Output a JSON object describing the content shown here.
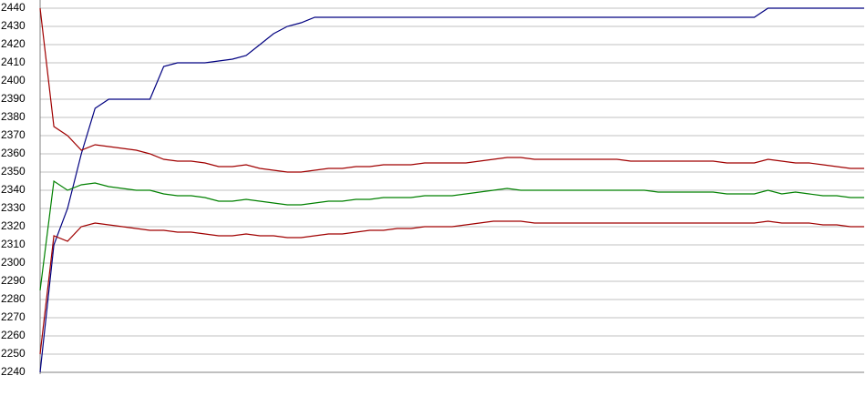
{
  "chart_data": {
    "type": "line",
    "categories": [
      null,
      null,
      null,
      null,
      null,
      null,
      null,
      null,
      null,
      null,
      null,
      null,
      null,
      null,
      null,
      null,
      null,
      null,
      null,
      null,
      null,
      null,
      null,
      null,
      null,
      null,
      null,
      null,
      null,
      null,
      null,
      null,
      null,
      null,
      null,
      null,
      null,
      null,
      null,
      null,
      null,
      null,
      null,
      null,
      null,
      null,
      null,
      null,
      null,
      null,
      null,
      null,
      null,
      null,
      null,
      null,
      null,
      null,
      null,
      null,
      null
    ],
    "series": [
      {
        "color": "#000080",
        "values": [
          2240,
          2310,
          2330,
          2360,
          2385,
          2390,
          2390,
          2390,
          2390,
          2408,
          2410,
          2410,
          2410,
          2411,
          2412,
          2414,
          2420,
          2426,
          2430,
          2432,
          2435,
          2435,
          2435,
          2435,
          2435,
          2435,
          2435,
          2435,
          2435,
          2435,
          2435,
          2435,
          2435,
          2435,
          2435,
          2435,
          2435,
          2435,
          2435,
          2435,
          2435,
          2435,
          2435,
          2435,
          2435,
          2435,
          2435,
          2435,
          2435,
          2435,
          2435,
          2435,
          2435,
          2440,
          2440,
          2440,
          2440,
          2440,
          2440,
          2440,
          2440
        ]
      },
      {
        "color": "#a00000",
        "values": [
          2440,
          2375,
          2370,
          2362,
          2365,
          2364,
          2363,
          2362,
          2360,
          2357,
          2356,
          2356,
          2355,
          2353,
          2353,
          2354,
          2352,
          2351,
          2350,
          2350,
          2351,
          2352,
          2352,
          2353,
          2353,
          2354,
          2354,
          2354,
          2355,
          2355,
          2355,
          2355,
          2356,
          2357,
          2358,
          2358,
          2357,
          2357,
          2357,
          2357,
          2357,
          2357,
          2357,
          2356,
          2356,
          2356,
          2356,
          2356,
          2356,
          2356,
          2355,
          2355,
          2355,
          2357,
          2356,
          2355,
          2355,
          2354,
          2353,
          2352,
          2352
        ]
      },
      {
        "color": "#008000",
        "values": [
          2285,
          2345,
          2340,
          2343,
          2344,
          2342,
          2341,
          2340,
          2340,
          2338,
          2337,
          2337,
          2336,
          2334,
          2334,
          2335,
          2334,
          2333,
          2332,
          2332,
          2333,
          2334,
          2334,
          2335,
          2335,
          2336,
          2336,
          2336,
          2337,
          2337,
          2337,
          2338,
          2339,
          2340,
          2341,
          2340,
          2340,
          2340,
          2340,
          2340,
          2340,
          2340,
          2340,
          2340,
          2340,
          2339,
          2339,
          2339,
          2339,
          2339,
          2338,
          2338,
          2338,
          2340,
          2338,
          2339,
          2338,
          2337,
          2337,
          2336,
          2336
        ]
      },
      {
        "color": "#a00000",
        "values": [
          2250,
          2315,
          2312,
          2320,
          2322,
          2321,
          2320,
          2319,
          2318,
          2318,
          2317,
          2317,
          2316,
          2315,
          2315,
          2316,
          2315,
          2315,
          2314,
          2314,
          2315,
          2316,
          2316,
          2317,
          2318,
          2318,
          2319,
          2319,
          2320,
          2320,
          2320,
          2321,
          2322,
          2323,
          2323,
          2323,
          2322,
          2322,
          2322,
          2322,
          2322,
          2322,
          2322,
          2322,
          2322,
          2322,
          2322,
          2322,
          2322,
          2322,
          2322,
          2322,
          2322,
          2323,
          2322,
          2322,
          2322,
          2321,
          2321,
          2320,
          2320
        ]
      }
    ],
    "ylim": [
      2240,
      2440
    ],
    "yticks": [
      2240,
      2250,
      2260,
      2270,
      2280,
      2290,
      2300,
      2310,
      2320,
      2330,
      2340,
      2350,
      2360,
      2370,
      2380,
      2390,
      2400,
      2410,
      2420,
      2430,
      2440
    ],
    "grid": true
  }
}
